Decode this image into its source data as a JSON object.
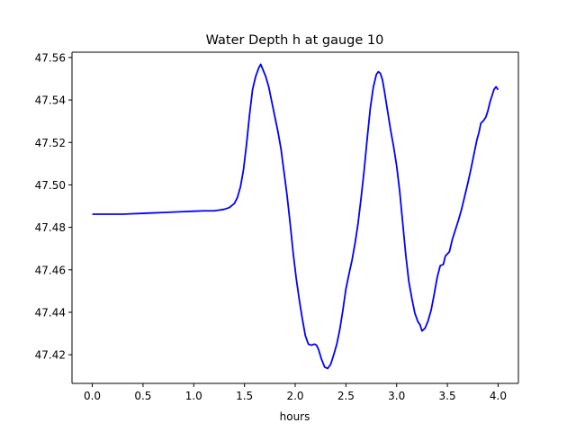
{
  "chart_data": {
    "type": "line",
    "title": "Water Depth h at gauge 10",
    "xlabel": "hours",
    "ylabel": "",
    "xlim": [
      -0.2,
      4.2
    ],
    "ylim": [
      47.4065,
      47.5625
    ],
    "xticks": [
      0.0,
      0.5,
      1.0,
      1.5,
      2.0,
      2.5,
      3.0,
      3.5,
      4.0
    ],
    "xtick_labels": [
      "0.0",
      "0.5",
      "1.0",
      "1.5",
      "2.0",
      "2.5",
      "3.0",
      "3.5",
      "4.0"
    ],
    "yticks": [
      47.42,
      47.44,
      47.46,
      47.48,
      47.5,
      47.52,
      47.54,
      47.56
    ],
    "ytick_labels": [
      "47.42",
      "47.44",
      "47.46",
      "47.48",
      "47.50",
      "47.52",
      "47.54",
      "47.56"
    ],
    "grid": false,
    "series": [
      {
        "color": "#0000ff",
        "x": [
          0.0,
          0.1,
          0.2,
          0.3,
          0.4,
          0.5,
          0.6,
          0.7,
          0.8,
          0.9,
          1.0,
          1.1,
          1.15,
          1.2,
          1.25,
          1.3,
          1.35,
          1.4,
          1.43,
          1.46,
          1.49,
          1.52,
          1.55,
          1.58,
          1.61,
          1.64,
          1.66,
          1.68,
          1.71,
          1.74,
          1.77,
          1.8,
          1.83,
          1.86,
          1.89,
          1.92,
          1.95,
          1.98,
          2.01,
          2.04,
          2.07,
          2.1,
          2.13,
          2.16,
          2.19,
          2.21,
          2.23,
          2.26,
          2.29,
          2.32,
          2.35,
          2.38,
          2.41,
          2.44,
          2.47,
          2.5,
          2.53,
          2.56,
          2.59,
          2.62,
          2.65,
          2.68,
          2.71,
          2.74,
          2.77,
          2.8,
          2.82,
          2.84,
          2.86,
          2.88,
          2.91,
          2.94,
          2.97,
          3.0,
          3.03,
          3.06,
          3.09,
          3.12,
          3.15,
          3.18,
          3.21,
          3.23,
          3.25,
          3.28,
          3.31,
          3.34,
          3.37,
          3.4,
          3.43,
          3.46,
          3.48,
          3.5,
          3.52,
          3.55,
          3.58,
          3.61,
          3.64,
          3.67,
          3.7,
          3.73,
          3.76,
          3.79,
          3.81,
          3.83,
          3.86,
          3.88,
          3.9,
          3.92,
          3.94,
          3.96,
          3.98,
          4.0
        ],
        "y": [
          47.4862,
          47.4862,
          47.4862,
          47.4862,
          47.4864,
          47.4866,
          47.4868,
          47.487,
          47.4872,
          47.4874,
          47.4876,
          47.4878,
          47.4878,
          47.4878,
          47.4881,
          47.4885,
          47.4893,
          47.4912,
          47.494,
          47.499,
          47.507,
          47.519,
          47.533,
          47.545,
          47.551,
          47.555,
          47.5568,
          47.5545,
          47.551,
          47.546,
          47.539,
          47.532,
          47.525,
          47.517,
          47.506,
          47.495,
          47.482,
          47.468,
          47.456,
          47.446,
          47.437,
          47.429,
          47.425,
          47.4245,
          47.425,
          47.4245,
          47.4225,
          47.4178,
          47.4142,
          47.4135,
          47.4155,
          47.42,
          47.425,
          47.432,
          47.441,
          47.451,
          47.458,
          47.4645,
          47.4725,
          47.482,
          47.494,
          47.507,
          47.522,
          47.536,
          47.546,
          47.552,
          47.5533,
          47.5525,
          47.5495,
          47.544,
          47.535,
          47.526,
          47.518,
          47.509,
          47.497,
          47.482,
          47.467,
          47.4545,
          47.4465,
          47.4395,
          47.4355,
          47.4342,
          47.4312,
          47.4325,
          47.436,
          47.441,
          47.4485,
          47.4565,
          47.462,
          47.4625,
          47.4665,
          47.4675,
          47.4685,
          47.4745,
          47.479,
          47.4835,
          47.4885,
          47.4945,
          47.5005,
          47.507,
          47.514,
          47.521,
          47.5245,
          47.529,
          47.5305,
          47.532,
          47.535,
          47.539,
          47.542,
          47.545,
          47.5462,
          47.5448
        ]
      }
    ]
  }
}
